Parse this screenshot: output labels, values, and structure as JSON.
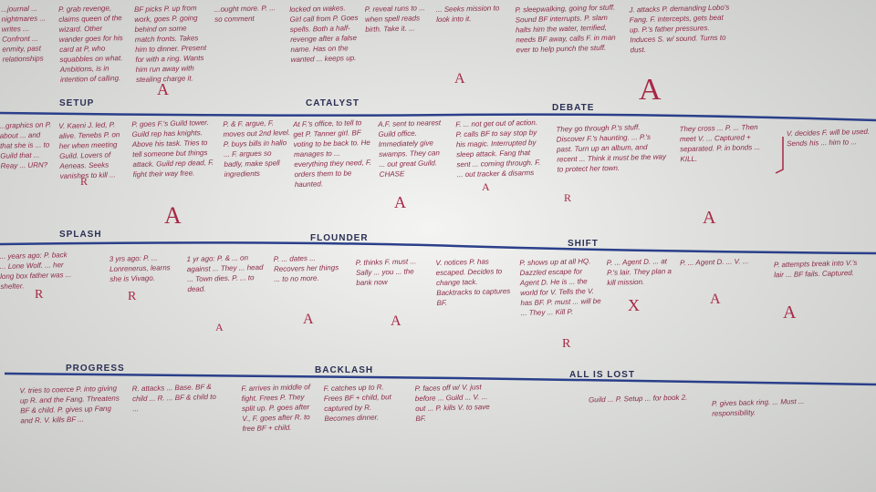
{
  "headings": [
    "SETUP",
    "CATALYST",
    "DEBATE",
    "SPLASH",
    "FLOUNDER",
    "SHIFT",
    "PROGRESS",
    "BACKLASH",
    "ALL IS LOST"
  ],
  "notes": [
    {
      "text": "...journal ... nightmares ... writes ... Confront ... enmity, past relationships"
    },
    {
      "text": "P. grab revenge, claims queen of the wizard. Other wander goes for his card at P, who squabbles on what. Ambitions, is in intention of calling."
    },
    {
      "text": "BF picks P. up from work, goes P. going behind on some match fronts. Takes him to dinner. Present for with a ring. Wants him run away with stealing charge it.",
      "grade": "A"
    },
    {
      "text": "...ought more. P. ... so comment"
    },
    {
      "text": "locked on wakes. Girl call from P. Goes spells. Both a half-revenge after a false name. Has on the wanted ... keeps up."
    },
    {
      "text": "P. reveal runs to ... when spell reads birth. Take it. ...",
      "grade": "A"
    },
    {
      "text": "... Seeks mission to look into it."
    },
    {
      "text": "P. sleepwalking, going for stuff. Sound BF interrupts. P. slam halts him the water, terrified, needs BF away, calls F. in man ever to help punch the stuff.",
      "grade": "A"
    },
    {
      "text": "J. attacks P. demanding Lobo's Fang. F. intercepts, gets beat up. P.'s father pressures. Induces S. w/ sound. Turns to dust."
    },
    {
      "text": "...graphics on P. about ... and that she is ... to Guild that ... Reay ... URN?"
    },
    {
      "text": "V. Kaeni J. led, P. alive. Tenebs P. on her when meeting Guild. Lovers of Aeneas. Seeks vanishes to kill ...",
      "grade": "R"
    },
    {
      "text": "P. goes F.'s Guild tower. Guild rep has knights. Above his task. Tries to tell someone but things attack. Guild rep dead, F. fight their way free.",
      "grade": "A"
    },
    {
      "text": "P. & F. argue, F. moves out 2nd level. P. buys bills in hallo ... F. argues so badly, make spell ingredients"
    },
    {
      "text": "At F.'s office, to tell to get P. Tanner girl. BF voting to be back to. He manages to ... everything they need, F. orders them to be haunted."
    },
    {
      "text": "A.F. sent to nearest Guild office. Immediately give swamps. They can ... out great Guild. CHASE",
      "grade": "A"
    },
    {
      "text": "F. ... not get out of action. P. calls BF to say stop by his magic. Interrupted by sleep attack. Fang that sent ... coming through. F. ... out tracker & disarms",
      "grade": "A"
    },
    {
      "text": "They go through P.'s stuff. Discover F.'s haunting. ... P.'s past. Turn up an album, and recent ... Think it must be the way to protect her town.",
      "grade": "R"
    },
    {
      "text": "They cross ... P. ... Then meet V. ... Captured + separated. P. in bonds ... KILL.",
      "grade": "A"
    },
    {
      "text": "V. decides F. will be used. Sends his ... him to ..."
    },
    {
      "text": "... years ago: P. back ... Lone Wolf. ... her long box father was ... shelter.",
      "grade": "R"
    },
    {
      "text": "3 yrs ago: P. ... Lonrenerus, learns she is Vivago.",
      "grade": "R"
    },
    {
      "text": "1 yr ago: P. & ... on against ... They ... head ... Town dies. P. ... to dead.",
      "grade": "A"
    },
    {
      "text": "P. ... dates ... Recovers her things ... to no more.",
      "grade": "A"
    },
    {
      "text": "P. thinks F. must ... Sally ... you ... the bank now",
      "grade": "A"
    },
    {
      "text": "V. notices P. has escaped. Decides to change tack. Backtracks to captures BF."
    },
    {
      "text": "P. shows up at all HQ. Dazzled escape for Agent D. He is ... the world for V. Tells the V. has BF. P. must ... will be ... They ... Kill P.",
      "grade": "R"
    },
    {
      "text": "P. ... Agent D. ... at P.'s lair. They plan a kill mission.",
      "grade": "X"
    },
    {
      "text": "P. ... Agent D. ... V. ...",
      "grade": "A"
    },
    {
      "text": "P. attempts break into V.'s lair ... BF fails. Captured.",
      "grade": "A"
    },
    {
      "text": "V. tries to coerce P. into giving up R. and the Fang. Threatens BF & child. P. gives up Fang and R. V. kills BF ..."
    },
    {
      "text": "R. attacks ... Base. BF & child ... R. ... BF & child to ..."
    },
    {
      "text": "F. arrives in middle of fight. Frees P. They split up. P. goes after V., F. goes after R. to free BF + child."
    },
    {
      "text": "F. catches up to R. Frees BF + child, but captured by R. Becomes dinner."
    },
    {
      "text": "P. faces off w/ V. just before ... Guild ... V. ... out ... P. kills V. to save BF."
    },
    {
      "text": "Guild ... P. Setup ... for book 2."
    },
    {
      "text": "P. gives back ring. ... Must ... responsibility."
    }
  ]
}
